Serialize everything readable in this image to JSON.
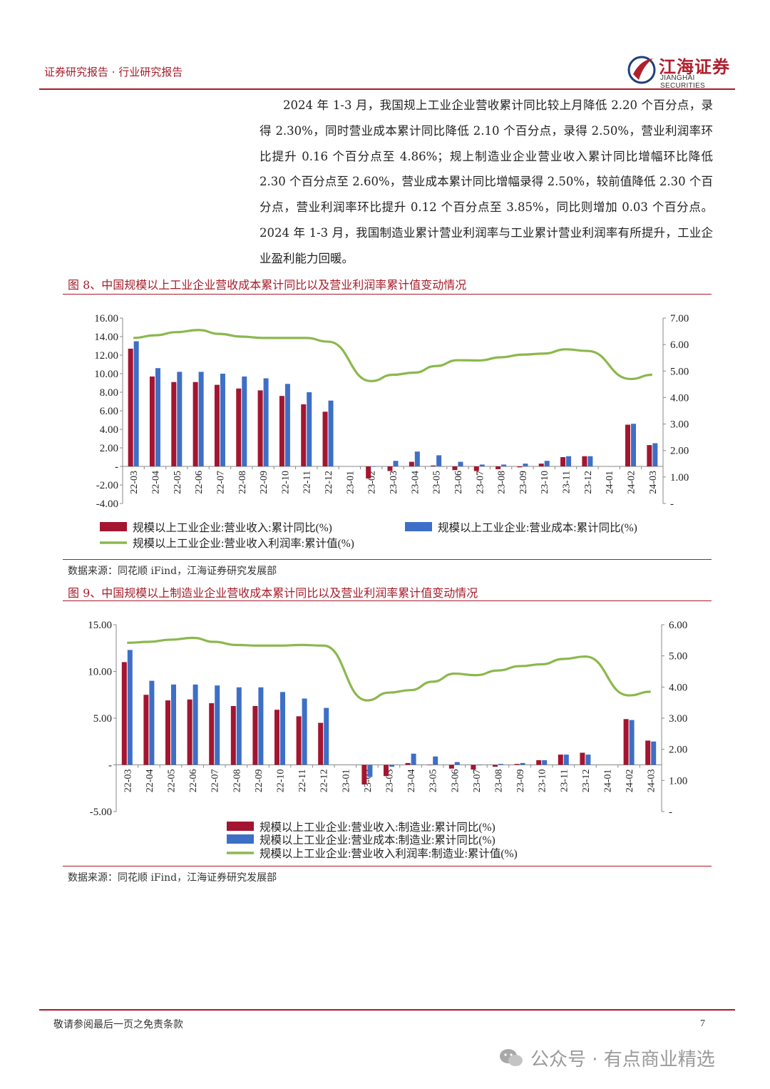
{
  "header": {
    "doc_title": "证券研究报告 · 行业研究报告",
    "logo_cn": "江海证券",
    "logo_en": "JIANGHAI SECURITIES"
  },
  "body_paragraph": "2024 年 1-3 月，我国规上工业企业营收累计同比较上月降低 2.20 个百分点，录得 2.30%，同时营业成本累计同比降低 2.10 个百分点，录得 2.50%，营业利润率环比提升 0.16 个百分点至 4.86%；规上制造业企业营业收入累计同比增幅环比降低 2.30 个百分点至 2.60%，营业成本累计同比增幅录得 2.50%，较前值降低 2.30 个百分点，营业利润率环比提升 0.12 个百分点至 3.85%，同比则增加 0.03 个百分点。2024 年 1-3 月，我国制造业累计营业利润率与工业累计营业利润率有所提升，工业企业盈利能力回暖。",
  "figures": [
    {
      "title": "图 8、中国规模以上工业企业营收成本累计同比以及营业利润率累计值变动情况",
      "source": "数据来源：同花顺 iFind，江海证券研究发展部"
    },
    {
      "title": "图 9、中国规模以上制造业企业营收成本累计同比以及营业利润率累计值变动情况",
      "source": "数据来源：同花顺 iFind，江海证券研究发展部"
    }
  ],
  "colors": {
    "bar1": "#a31530",
    "bar2": "#3e6fc6",
    "line": "#8bb84d",
    "accent": "#a61c2a"
  },
  "chart_data": [
    {
      "type": "bar",
      "categories": [
        "22-03",
        "22-04",
        "22-05",
        "22-06",
        "22-07",
        "22-08",
        "22-09",
        "22-10",
        "22-11",
        "22-12",
        "23-01",
        "23-02",
        "23-03",
        "23-04",
        "23-05",
        "23-06",
        "23-07",
        "23-08",
        "23-09",
        "23-10",
        "23-11",
        "23-12",
        "24-01",
        "24-02",
        "24-03"
      ],
      "series": [
        {
          "name": "规模以上工业企业:营业收入:累计同比(%)",
          "type": "bar",
          "axis": "left",
          "values": [
            12.7,
            9.7,
            9.1,
            9.1,
            8.8,
            8.4,
            8.2,
            7.6,
            6.7,
            5.9,
            null,
            -1.3,
            -0.5,
            0.5,
            0.1,
            -0.4,
            -0.5,
            -0.3,
            -0.1,
            0.3,
            1.0,
            1.1,
            null,
            4.5,
            2.3
          ]
        },
        {
          "name": "规模以上工业企业:营业成本:累计同比(%)",
          "type": "bar",
          "axis": "left",
          "values": [
            13.5,
            10.6,
            10.2,
            10.2,
            10.0,
            9.7,
            9.5,
            8.9,
            8.0,
            7.1,
            null,
            0.0,
            0.6,
            1.6,
            1.2,
            0.5,
            0.2,
            0.2,
            0.3,
            0.6,
            1.1,
            1.1,
            null,
            4.6,
            2.5
          ]
        },
        {
          "name": "规模以上工业企业:营业收入利润率:累计值(%)",
          "type": "line",
          "axis": "right",
          "values": [
            6.25,
            6.35,
            6.47,
            6.55,
            6.4,
            6.3,
            6.25,
            6.25,
            6.25,
            6.11,
            null,
            4.62,
            4.86,
            4.94,
            5.19,
            5.41,
            5.4,
            5.52,
            5.62,
            5.66,
            5.82,
            5.76,
            null,
            4.7,
            4.86
          ]
        }
      ],
      "left_axis": {
        "ticks": [
          "16.00",
          "14.00",
          "12.00",
          "10.00",
          "8.00",
          "6.00",
          "4.00",
          "2.00",
          "-",
          "-2.00",
          "-4.00"
        ],
        "ylim": [
          -4,
          16
        ]
      },
      "right_axis": {
        "ticks": [
          "7.00",
          "6.00",
          "5.00",
          "4.00",
          "3.00",
          "2.00",
          "1.00",
          "-"
        ],
        "ylim": [
          0,
          7
        ]
      },
      "legend_position": "bottom"
    },
    {
      "type": "bar",
      "categories": [
        "22-03",
        "22-04",
        "22-05",
        "22-06",
        "22-07",
        "22-08",
        "22-09",
        "22-10",
        "22-11",
        "22-12",
        "23-01",
        "23-02",
        "23-03",
        "23-04",
        "23-05",
        "23-06",
        "23-07",
        "23-08",
        "23-09",
        "23-10",
        "23-11",
        "23-12",
        "24-01",
        "24-02",
        "24-03"
      ],
      "series": [
        {
          "name": "规模以上工业企业:营业收入:制造业:累计同比(%)",
          "type": "bar",
          "axis": "left",
          "values": [
            11.0,
            7.5,
            6.9,
            7.0,
            6.6,
            6.3,
            6.3,
            5.9,
            5.2,
            4.5,
            null,
            -2.1,
            -1.2,
            0.2,
            0.0,
            -0.4,
            -0.5,
            -0.2,
            0.1,
            0.5,
            1.1,
            1.3,
            null,
            4.9,
            2.6
          ]
        },
        {
          "name": "规模以上工业企业:营业成本:制造业:累计同比(%)",
          "type": "bar",
          "axis": "left",
          "values": [
            12.3,
            9.0,
            8.6,
            8.6,
            8.5,
            8.3,
            8.3,
            7.8,
            7.1,
            6.1,
            null,
            -1.3,
            -0.2,
            1.2,
            0.9,
            0.3,
            0.0,
            0.1,
            0.2,
            0.5,
            1.1,
            1.1,
            null,
            4.8,
            2.5
          ]
        },
        {
          "name": "规模以上工业企业:营业收入利润率:制造业:累计值(%)",
          "type": "line",
          "axis": "right",
          "values": [
            5.42,
            5.45,
            5.52,
            5.58,
            5.45,
            5.35,
            5.33,
            5.33,
            5.35,
            5.33,
            null,
            3.57,
            3.82,
            3.9,
            4.17,
            4.43,
            4.38,
            4.53,
            4.67,
            4.73,
            4.9,
            4.98,
            null,
            3.73,
            3.85
          ]
        }
      ],
      "left_axis": {
        "ticks": [
          "15.00",
          "10.00",
          "5.00",
          "-",
          "-5.00"
        ],
        "ylim": [
          -5,
          15
        ]
      },
      "right_axis": {
        "ticks": [
          "6.00",
          "5.00",
          "4.00",
          "3.00",
          "2.00",
          "1.00",
          "-"
        ],
        "ylim": [
          0,
          6
        ]
      },
      "legend_position": "bottom"
    }
  ],
  "footer": {
    "disclaimer": "敬请参阅最后一页之免责条款",
    "page": "7"
  },
  "watermark": "公众号 · 有点商业精选"
}
